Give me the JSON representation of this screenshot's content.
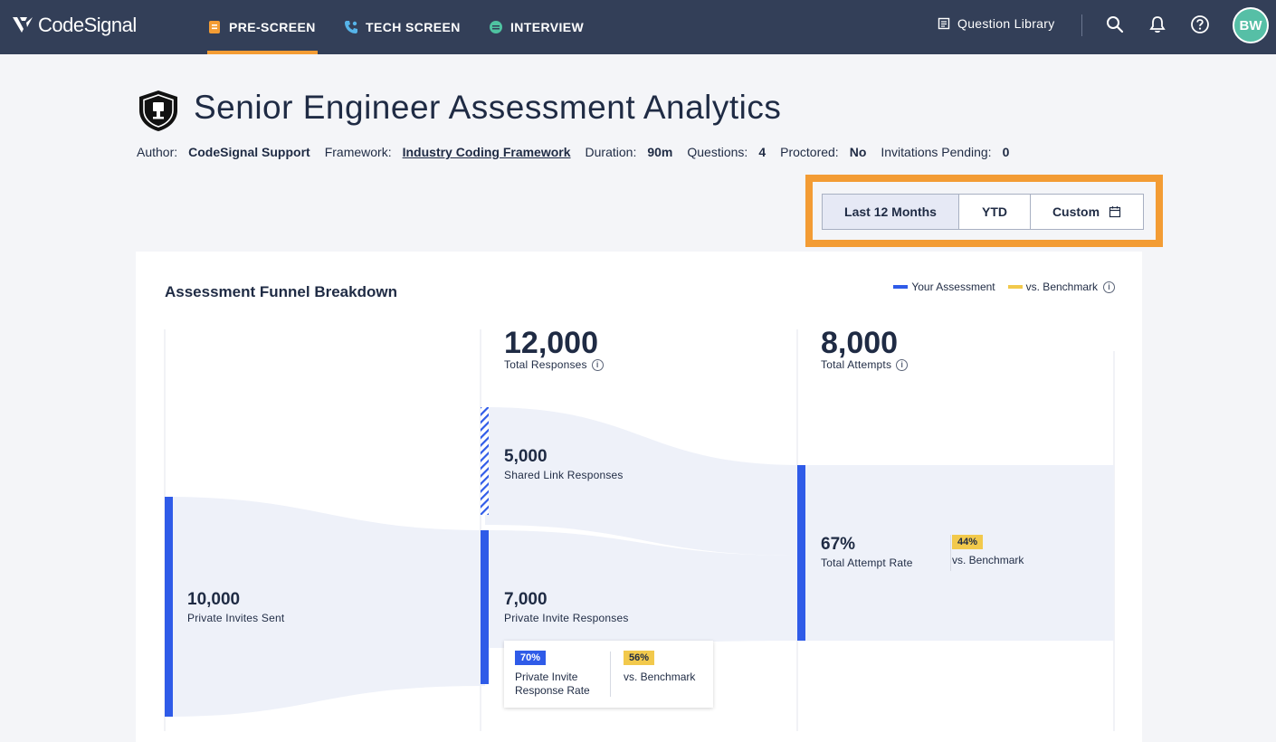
{
  "nav": {
    "brand": "CodeSignal",
    "tabs": [
      {
        "label": "PRE-SCREEN",
        "icon": "clipboard-icon",
        "active": true
      },
      {
        "label": "TECH SCREEN",
        "icon": "phone-icon",
        "active": false
      },
      {
        "label": "INTERVIEW",
        "icon": "chat-icon",
        "active": false
      }
    ],
    "question_library": "Question Library",
    "avatar_initials": "BW"
  },
  "header": {
    "title": "Senior Engineer Assessment Analytics",
    "meta": {
      "author_label": "Author:",
      "author": "CodeSignal Support",
      "framework_label": "Framework:",
      "framework": "Industry Coding Framework",
      "duration_label": "Duration:",
      "duration": "90m",
      "questions_label": "Questions:",
      "questions": "4",
      "proctored_label": "Proctored:",
      "proctored": "No",
      "pending_label": "Invitations Pending:",
      "pending": "0"
    }
  },
  "range": {
    "options": [
      "Last 12 Months",
      "YTD",
      "Custom"
    ],
    "selected": "Last 12 Months"
  },
  "funnel": {
    "title": "Assessment Funnel Breakdown",
    "legend": {
      "assessment": "Your Assessment",
      "benchmark": "vs. Benchmark"
    },
    "colors": {
      "assessment": "#2f5be8",
      "benchmark": "#f2c94c"
    },
    "private_invites": {
      "value": "10,000",
      "label": "Private Invites Sent"
    },
    "total_responses": {
      "value": "12,000",
      "label": "Total Responses"
    },
    "shared_link": {
      "value": "5,000",
      "label": "Shared Link Responses"
    },
    "private_responses": {
      "value": "7,000",
      "label": "Private Invite Responses"
    },
    "private_rate": {
      "value": "70%",
      "label_line1": "Private Invite",
      "label_line2": "Response Rate",
      "benchmark": "56%",
      "benchmark_label": "vs. Benchmark"
    },
    "total_attempts": {
      "value": "8,000",
      "label": "Total Attempts"
    },
    "attempt_rate": {
      "value": "67%",
      "label": "Total Attempt Rate",
      "benchmark": "44%",
      "benchmark_label": "vs. Benchmark"
    }
  }
}
